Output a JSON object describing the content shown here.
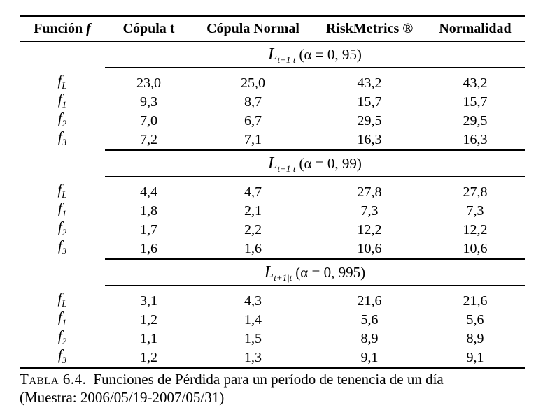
{
  "colors": {
    "background": "#ffffff",
    "text": "#000000",
    "rule": "#000000"
  },
  "table": {
    "header": {
      "col1_text": "Función",
      "col1_math": "f",
      "col2": "Cópula t",
      "col3": "Cópula Normal",
      "col4": "RiskMetrics ®",
      "col5": "Normalidad"
    },
    "sections": [
      {
        "title": {
          "main": "L",
          "sub": "t+1|t",
          "alpha": "(α = 0, 95)"
        },
        "rows": [
          {
            "label": {
              "base": "f",
              "sub": "L"
            },
            "values": [
              "23,0",
              "25,0",
              "43,2",
              "43,2"
            ]
          },
          {
            "label": {
              "base": "f",
              "sub": "1"
            },
            "values": [
              "9,3",
              "8,7",
              "15,7",
              "15,7"
            ]
          },
          {
            "label": {
              "base": "f",
              "sub": "2"
            },
            "values": [
              "7,0",
              "6,7",
              "29,5",
              "29,5"
            ]
          },
          {
            "label": {
              "base": "f",
              "sub": "3"
            },
            "values": [
              "7,2",
              "7,1",
              "16,3",
              "16,3"
            ]
          }
        ]
      },
      {
        "title": {
          "main": "L",
          "sub": "t+1|t",
          "alpha": "(α = 0, 99)"
        },
        "rows": [
          {
            "label": {
              "base": "f",
              "sub": "L"
            },
            "values": [
              "4,4",
              "4,7",
              "27,8",
              "27,8"
            ]
          },
          {
            "label": {
              "base": "f",
              "sub": "1"
            },
            "values": [
              "1,8",
              "2,1",
              "7,3",
              "7,3"
            ]
          },
          {
            "label": {
              "base": "f",
              "sub": "2"
            },
            "values": [
              "1,7",
              "2,2",
              "12,2",
              "12,2"
            ]
          },
          {
            "label": {
              "base": "f",
              "sub": "3"
            },
            "values": [
              "1,6",
              "1,6",
              "10,6",
              "10,6"
            ]
          }
        ]
      },
      {
        "title": {
          "main": "L",
          "sub": "t+1|t",
          "alpha": "(α = 0, 995)"
        },
        "rows": [
          {
            "label": {
              "base": "f",
              "sub": "L"
            },
            "values": [
              "3,1",
              "4,3",
              "21,6",
              "21,6"
            ]
          },
          {
            "label": {
              "base": "f",
              "sub": "1"
            },
            "values": [
              "1,2",
              "1,4",
              "5,6",
              "5,6"
            ]
          },
          {
            "label": {
              "base": "f",
              "sub": "2"
            },
            "values": [
              "1,1",
              "1,5",
              "8,9",
              "8,9"
            ]
          },
          {
            "label": {
              "base": "f",
              "sub": "3"
            },
            "values": [
              "1,2",
              "1,3",
              "9,1",
              "9,1"
            ]
          }
        ]
      }
    ]
  },
  "caption": {
    "label": "Tabla 6.4.",
    "text": "Funciones de Pérdida para un período de tenencia de un día",
    "line2": "(Muestra: 2006/05/19-2007/05/31)"
  }
}
